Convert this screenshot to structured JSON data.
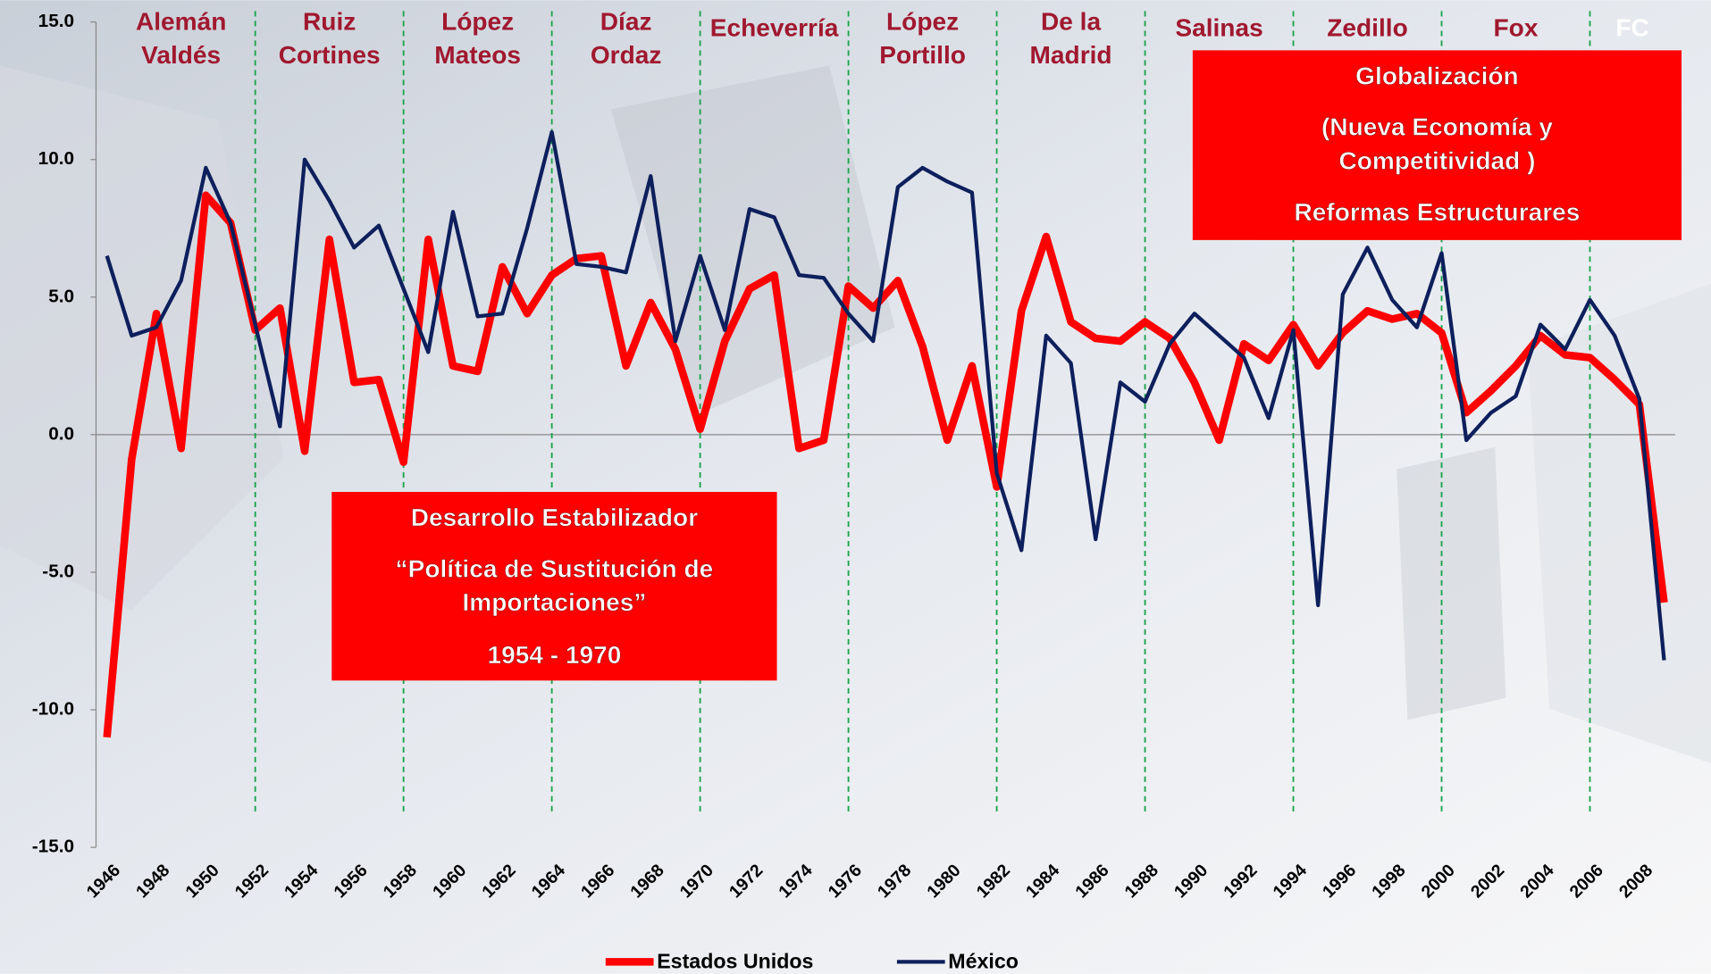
{
  "chart_data": {
    "type": "line",
    "categories": [
      "1946",
      null,
      "1948",
      null,
      "1950",
      null,
      "1952",
      null,
      "1954",
      null,
      "1956",
      null,
      "1958",
      null,
      "1960",
      null,
      "1962",
      null,
      "1964",
      null,
      "1966",
      null,
      "1968",
      null,
      "1970",
      null,
      "1972",
      null,
      "1974",
      null,
      "1976",
      null,
      "1978",
      null,
      "1980",
      null,
      "1982",
      null,
      "1984",
      null,
      "1986",
      null,
      "1988",
      null,
      "1990",
      null,
      "1992",
      null,
      "1994",
      null,
      "1996",
      null,
      "1998",
      null,
      "2000",
      null,
      "2002",
      null,
      "2004",
      null,
      "2006",
      null,
      "2008",
      null
    ],
    "series": [
      {
        "name": "Estados Unidos",
        "color": "#ff0000",
        "values": [
          -11.0,
          -0.9,
          4.4,
          -0.5,
          8.7,
          7.7,
          3.8,
          4.6,
          -0.6,
          7.1,
          1.9,
          2.0,
          -1.0,
          7.1,
          2.5,
          2.3,
          6.1,
          4.4,
          5.8,
          6.4,
          6.5,
          2.5,
          4.8,
          3.1,
          0.2,
          3.4,
          5.3,
          5.8,
          -0.5,
          -0.2,
          5.4,
          4.6,
          5.6,
          3.2,
          -0.2,
          2.5,
          -1.9,
          4.5,
          7.2,
          4.1,
          3.5,
          3.4,
          4.1,
          3.5,
          1.9,
          -0.2,
          3.3,
          2.7,
          4.0,
          2.5,
          3.7,
          4.5,
          4.2,
          4.4,
          3.7,
          0.8,
          1.6,
          2.5,
          3.6,
          2.9,
          2.8,
          2.0,
          1.1,
          -6.1
        ]
      },
      {
        "name": "México",
        "color": "#0d1f5c",
        "values": [
          6.5,
          3.6,
          3.9,
          5.6,
          9.7,
          7.7,
          4.0,
          0.3,
          10.0,
          8.5,
          6.8,
          7.6,
          5.3,
          3.0,
          8.1,
          4.3,
          4.4,
          7.5,
          11.0,
          6.2,
          6.1,
          5.9,
          9.4,
          3.4,
          6.5,
          3.8,
          8.2,
          7.9,
          5.8,
          5.7,
          4.4,
          3.4,
          9.0,
          9.7,
          9.2,
          8.8,
          -1.4,
          -4.2,
          3.6,
          2.6,
          -3.8,
          1.9,
          1.2,
          3.3,
          4.4,
          3.6,
          2.8,
          0.6,
          3.8,
          -6.2,
          5.1,
          6.8,
          4.9,
          3.9,
          6.6,
          -0.2,
          0.8,
          1.4,
          4.0,
          3.1,
          4.9,
          3.6,
          1.3,
          -8.2
        ]
      }
    ],
    "ylim": [
      -15,
      15
    ],
    "yticks": [
      {
        "value": -15,
        "label": "-15.0"
      },
      {
        "value": -10,
        "label": "-10.0"
      },
      {
        "value": -5,
        "label": "-5.0"
      },
      {
        "value": 0,
        "label": "0.0"
      },
      {
        "value": 5,
        "label": "5.0"
      },
      {
        "value": 10,
        "label": "10.0"
      },
      {
        "value": 15,
        "label": "15.0"
      }
    ],
    "dividers": [
      1952,
      1958,
      1964,
      1970,
      1976,
      1982,
      1988,
      1994,
      2000,
      2006
    ],
    "periods": [
      [
        "Alemán",
        "Valdés"
      ],
      [
        "Ruiz",
        "Cortines"
      ],
      [
        "López",
        "Mateos"
      ],
      [
        "Díaz",
        "Ordaz"
      ],
      [
        "Echeverría"
      ],
      [
        "López",
        "Portillo"
      ],
      [
        "De la",
        "Madrid"
      ],
      [
        "Salinas"
      ],
      [
        "Zedillo"
      ],
      [
        "Fox"
      ],
      [
        "FC"
      ]
    ],
    "annotations": [
      [
        "Desarrollo Estabilizador",
        "“Política de Sustitución de",
        "Importaciones”",
        "1954 - 1970"
      ],
      [
        "Globalización",
        "(Nueva Economía y",
        "Competitividad )",
        "Reformas Estructurares"
      ]
    ]
  }
}
